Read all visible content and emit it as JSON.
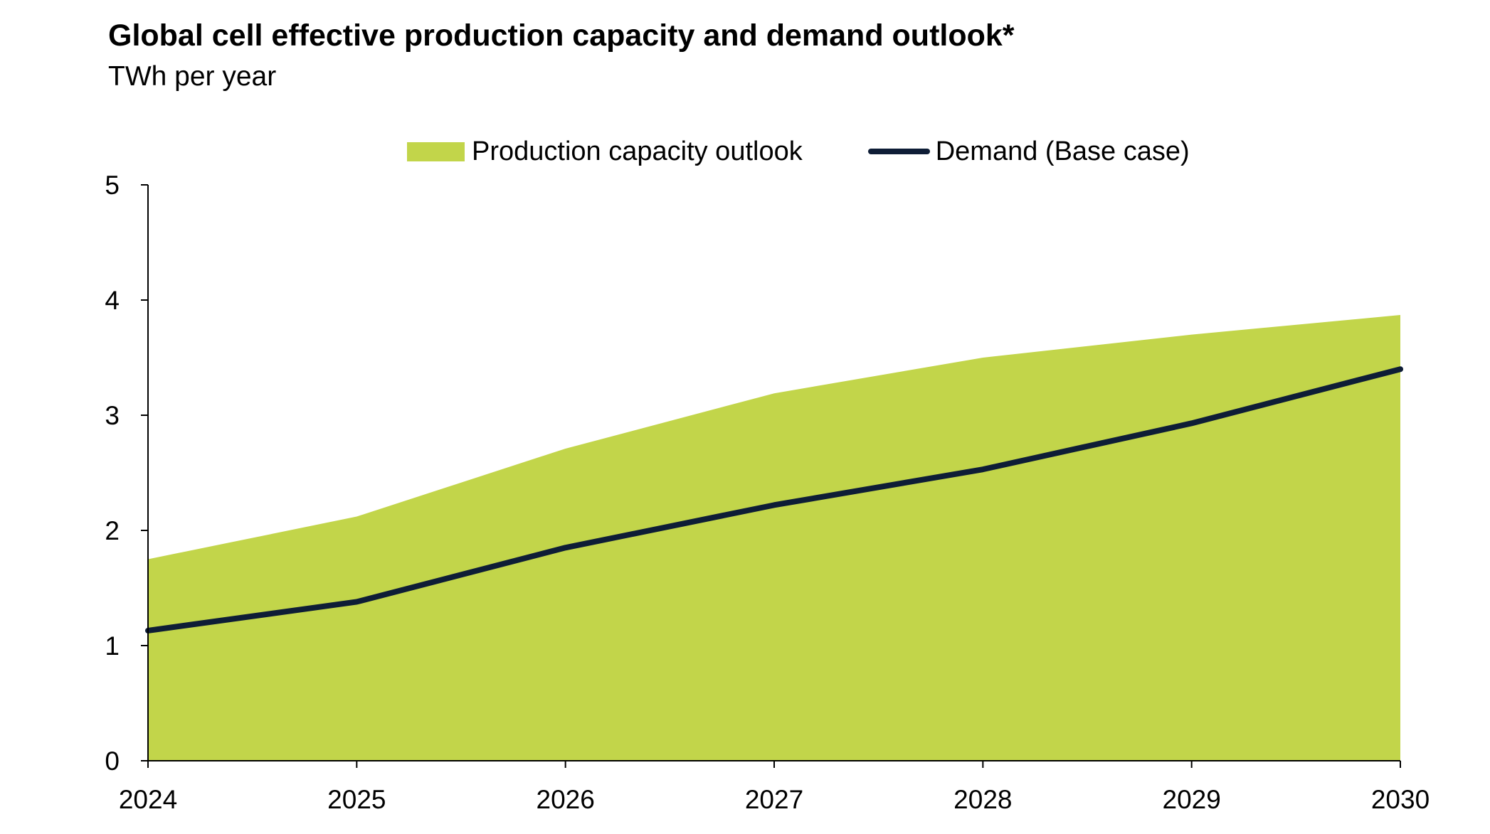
{
  "chart_data": {
    "type": "area",
    "title": "Global cell effective production capacity and demand outlook*",
    "subtitle": "TWh per year",
    "xlabel": "",
    "ylabel": "",
    "x": [
      "2024",
      "2025",
      "2026",
      "2027",
      "2028",
      "2029",
      "2030"
    ],
    "ylim": [
      0,
      5
    ],
    "yticks": [
      "0",
      "1",
      "2",
      "3",
      "4",
      "5"
    ],
    "grid": false,
    "legend_position": "top-center",
    "series": [
      {
        "name": "Production capacity outlook",
        "type": "area",
        "color": "#c2d54a",
        "values": [
          1.75,
          2.12,
          2.71,
          3.19,
          3.5,
          3.7,
          3.87
        ]
      },
      {
        "name": "Demand (Base case)",
        "type": "line",
        "color": "#0e1d36",
        "values": [
          1.13,
          1.38,
          1.85,
          2.22,
          2.53,
          2.93,
          3.4
        ]
      }
    ]
  }
}
